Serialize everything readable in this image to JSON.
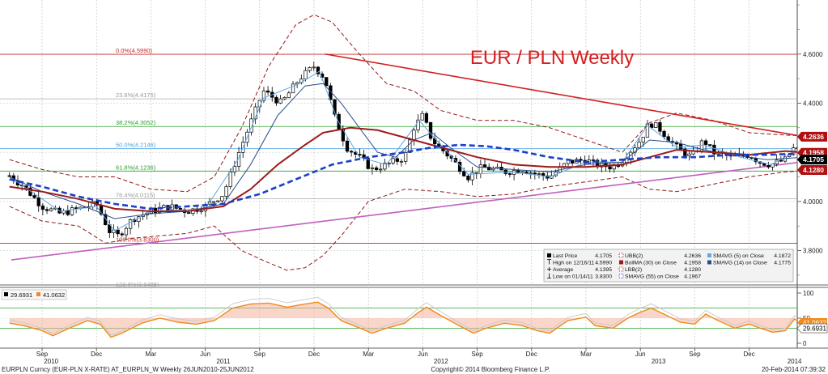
{
  "title": "EUR / PLN Weekly",
  "footer": {
    "left": "EURPLN Curncy (EUR-PLN X-RATE) AT_EURPLN_W  Weekly 26JUN2010-25JUN2012",
    "center": "Copyright© 2014 Bloomberg Finance L.P.",
    "right": "20-Feb-2014 07:39:32"
  },
  "x_axis": {
    "months": [
      {
        "label": "Sep",
        "t": 0
      },
      {
        "label": "Dec",
        "t": 3
      },
      {
        "label": "Mar",
        "t": 6
      },
      {
        "label": "Jun",
        "t": 9
      },
      {
        "label": "Sep",
        "t": 12
      },
      {
        "label": "Dec",
        "t": 15
      },
      {
        "label": "Mar",
        "t": 18
      },
      {
        "label": "Jun",
        "t": 21
      },
      {
        "label": "Sep",
        "t": 24
      },
      {
        "label": "Dec",
        "t": 27
      },
      {
        "label": "Mar",
        "t": 30
      },
      {
        "label": "Jun",
        "t": 33
      },
      {
        "label": "Sep",
        "t": 36
      },
      {
        "label": "Dec",
        "t": 39
      }
    ],
    "years": [
      {
        "label": "2010",
        "t": 0.5
      },
      {
        "label": "2011",
        "t": 10
      },
      {
        "label": "2012",
        "t": 22
      },
      {
        "label": "2013",
        "t": 34
      },
      {
        "label": "2014",
        "t": 41.5
      }
    ]
  },
  "price_axis": {
    "ticks": [
      "4.6000",
      "4.4000",
      "4.2000",
      "4.0000",
      "3.8000"
    ],
    "tick_values": [
      4.6,
      4.4,
      4.2,
      4.0,
      3.8
    ],
    "range": [
      3.66,
      4.82
    ],
    "badges": [
      {
        "label": "4.2636",
        "value": 4.2636,
        "color": "#b01010"
      },
      {
        "label": "4.1958",
        "value": 4.198,
        "color": "#b01010"
      },
      {
        "label": "4.1705",
        "value": 4.1705,
        "color": "#000000"
      },
      {
        "label": "4.1280",
        "value": 4.128,
        "color": "#b01010"
      }
    ]
  },
  "fib_levels": [
    {
      "label": "0.0%(4.5990)",
      "value": 4.599,
      "color": "#c22a2a"
    },
    {
      "label": "23.6%(4.4175)",
      "value": 4.4175,
      "color": "#aaaaaa"
    },
    {
      "label": "38.2%(4.3052)",
      "value": 4.3052,
      "color": "#2ca02c"
    },
    {
      "label": "50.0%(4.2146)",
      "value": 4.2146,
      "color": "#4fa3e0"
    },
    {
      "label": "61.8%(4.1236)",
      "value": 4.1236,
      "color": "#2ca02c"
    },
    {
      "label": "76.4%(4.0115)",
      "value": 4.0115,
      "color": "#aaaaaa"
    },
    {
      "label": "100.0%(3.8300)",
      "value": 3.83,
      "color": "#c22a2a"
    },
    {
      "label": "123.6%(3.6485)",
      "value": 3.6485,
      "color": "#aaaaaa"
    }
  ],
  "trendlines": [
    {
      "from": {
        "t": 15.6,
        "v": 4.6
      },
      "to": {
        "t": 43.5,
        "v": 4.245
      },
      "color": "#d02020"
    },
    {
      "from": {
        "t": -1.7,
        "v": 3.762
      },
      "to": {
        "t": 43.5,
        "v": 4.175
      },
      "color": "#c060c0"
    }
  ],
  "legend": {
    "col1": [
      {
        "icon": "filled-square",
        "label": "Last Price",
        "value": "4.1705"
      },
      {
        "icon": "high-tick",
        "label": "High on 12/16/11",
        "value": "4.5990"
      },
      {
        "icon": "average-plus",
        "label": "Average",
        "value": "4.1395"
      },
      {
        "icon": "low-tick",
        "label": "Low on 01/14/11",
        "value": "3.8300"
      }
    ],
    "col2": [
      {
        "icon": "dashed-maroon",
        "label": "UBB(2)",
        "value": "4.2636"
      },
      {
        "icon": "solid-maroon",
        "label": "BollMA (30) on Close",
        "value": "4.1958"
      },
      {
        "icon": "dashed-maroon",
        "label": "LBB(2)",
        "value": "4.1280"
      },
      {
        "icon": "dashed-blue",
        "label": "SMAVG (55) on Close",
        "value": "4.1967"
      }
    ],
    "col3": [
      {
        "icon": "light-blue-square",
        "label": "SMAVG (5) on Close",
        "value": "4.1872"
      },
      {
        "icon": "navy-square",
        "label": "SMAVG (14) on Close",
        "value": "4.1775"
      }
    ]
  },
  "indicator": {
    "legend": [
      {
        "label": "29.6931",
        "color": "#000000"
      },
      {
        "label": "41.0632",
        "color": "#f08a1c"
      }
    ],
    "ticks": [
      "100",
      "50",
      "0"
    ],
    "tick_values": [
      100,
      50,
      0
    ],
    "lines": [
      70,
      30
    ],
    "badges": [
      {
        "label": "41.0632",
        "value": 41.06,
        "color": "#f08a1c"
      },
      {
        "label": "29.6931",
        "value": 29.69,
        "color": "#000000"
      }
    ]
  },
  "chart_data": {
    "type": "candlestick",
    "title": "EUR / PLN Weekly",
    "x_unit": "month index starting Sep 2010",
    "ylim": [
      3.66,
      4.82
    ],
    "close_series": [
      {
        "t": -1.8,
        "close": 4.105
      },
      {
        "t": -1.0,
        "close": 4.06
      },
      {
        "t": 0.0,
        "close": 3.98
      },
      {
        "t": 1.0,
        "close": 3.95
      },
      {
        "t": 2.0,
        "close": 3.97
      },
      {
        "t": 3.0,
        "close": 3.99
      },
      {
        "t": 3.7,
        "close": 3.88
      },
      {
        "t": 4.2,
        "close": 3.86
      },
      {
        "t": 5.0,
        "close": 3.93
      },
      {
        "t": 6.0,
        "close": 3.96
      },
      {
        "t": 7.0,
        "close": 3.98
      },
      {
        "t": 8.0,
        "close": 3.96
      },
      {
        "t": 9.0,
        "close": 3.98
      },
      {
        "t": 10.0,
        "close": 4.03
      },
      {
        "t": 10.8,
        "close": 4.19
      },
      {
        "t": 11.5,
        "close": 4.32
      },
      {
        "t": 12.2,
        "close": 4.45
      },
      {
        "t": 13.2,
        "close": 4.4
      },
      {
        "t": 14.2,
        "close": 4.5
      },
      {
        "t": 15.0,
        "close": 4.55
      },
      {
        "t": 15.6,
        "close": 4.5
      },
      {
        "t": 16.1,
        "close": 4.35
      },
      {
        "t": 16.8,
        "close": 4.22
      },
      {
        "t": 17.5,
        "close": 4.18
      },
      {
        "t": 18.2,
        "close": 4.13
      },
      {
        "t": 19.0,
        "close": 4.15
      },
      {
        "t": 20.0,
        "close": 4.18
      },
      {
        "t": 20.5,
        "close": 4.3
      },
      {
        "t": 21.0,
        "close": 4.35
      },
      {
        "t": 21.5,
        "close": 4.25
      },
      {
        "t": 22.5,
        "close": 4.18
      },
      {
        "t": 23.5,
        "close": 4.1
      },
      {
        "t": 24.3,
        "close": 4.14
      },
      {
        "t": 25.5,
        "close": 4.12
      },
      {
        "t": 26.5,
        "close": 4.13
      },
      {
        "t": 27.3,
        "close": 4.11
      },
      {
        "t": 28.0,
        "close": 4.1
      },
      {
        "t": 29.0,
        "close": 4.16
      },
      {
        "t": 30.0,
        "close": 4.17
      },
      {
        "t": 30.5,
        "close": 4.15
      },
      {
        "t": 31.5,
        "close": 4.14
      },
      {
        "t": 32.0,
        "close": 4.17
      },
      {
        "t": 33.0,
        "close": 4.25
      },
      {
        "t": 33.5,
        "close": 4.32
      },
      {
        "t": 34.0,
        "close": 4.3
      },
      {
        "t": 35.0,
        "close": 4.22
      },
      {
        "t": 35.8,
        "close": 4.18
      },
      {
        "t": 36.5,
        "close": 4.25
      },
      {
        "t": 37.0,
        "close": 4.2
      },
      {
        "t": 38.0,
        "close": 4.18
      },
      {
        "t": 39.0,
        "close": 4.19
      },
      {
        "t": 39.6,
        "close": 4.16
      },
      {
        "t": 40.2,
        "close": 4.15
      },
      {
        "t": 41.0,
        "close": 4.17
      },
      {
        "t": 41.5,
        "close": 4.22
      },
      {
        "t": 42.0,
        "close": 4.19
      },
      {
        "t": 42.8,
        "close": 4.1705
      }
    ],
    "bollinger_ma_30": [
      [
        -1.8,
        4.06
      ],
      [
        0.0,
        4.04
      ],
      [
        2.0,
        4.01
      ],
      [
        4.0,
        3.97
      ],
      [
        6.0,
        3.96
      ],
      [
        8.0,
        3.96
      ],
      [
        10.0,
        3.98
      ],
      [
        11.5,
        4.05
      ],
      [
        13.0,
        4.15
      ],
      [
        14.5,
        4.23
      ],
      [
        15.5,
        4.28
      ],
      [
        17.0,
        4.3
      ],
      [
        18.5,
        4.29
      ],
      [
        20.0,
        4.26
      ],
      [
        22.0,
        4.22
      ],
      [
        24.0,
        4.18
      ],
      [
        26.0,
        4.15
      ],
      [
        28.0,
        4.14
      ],
      [
        30.0,
        4.14
      ],
      [
        32.0,
        4.15
      ],
      [
        33.5,
        4.18
      ],
      [
        35.0,
        4.21
      ],
      [
        37.0,
        4.2
      ],
      [
        39.0,
        4.19
      ],
      [
        41.0,
        4.205
      ],
      [
        42.8,
        4.196
      ]
    ],
    "bollinger_upper": [
      [
        -1.8,
        4.17
      ],
      [
        0.0,
        4.13
      ],
      [
        2.0,
        4.1
      ],
      [
        4.0,
        4.1
      ],
      [
        6.0,
        4.05
      ],
      [
        8.0,
        4.04
      ],
      [
        9.5,
        4.1
      ],
      [
        11.0,
        4.3
      ],
      [
        12.5,
        4.55
      ],
      [
        14.0,
        4.72
      ],
      [
        15.0,
        4.76
      ],
      [
        16.0,
        4.73
      ],
      [
        17.5,
        4.6
      ],
      [
        19.0,
        4.48
      ],
      [
        20.5,
        4.45
      ],
      [
        22.0,
        4.37
      ],
      [
        24.0,
        4.33
      ],
      [
        26.0,
        4.33
      ],
      [
        28.0,
        4.3
      ],
      [
        30.0,
        4.25
      ],
      [
        32.0,
        4.2
      ],
      [
        33.5,
        4.32
      ],
      [
        35.0,
        4.36
      ],
      [
        37.0,
        4.33
      ],
      [
        39.0,
        4.28
      ],
      [
        41.0,
        4.27
      ],
      [
        42.8,
        4.264
      ]
    ],
    "bollinger_lower": [
      [
        -1.8,
        3.98
      ],
      [
        0.0,
        3.92
      ],
      [
        2.0,
        3.9
      ],
      [
        3.5,
        3.83
      ],
      [
        5.0,
        3.85
      ],
      [
        6.5,
        3.86
      ],
      [
        8.0,
        3.87
      ],
      [
        9.5,
        3.9
      ],
      [
        11.0,
        3.8
      ],
      [
        12.5,
        3.75
      ],
      [
        13.5,
        3.72
      ],
      [
        14.5,
        3.73
      ],
      [
        15.5,
        3.78
      ],
      [
        16.5,
        3.86
      ],
      [
        18.0,
        4.0
      ],
      [
        20.0,
        4.05
      ],
      [
        22.0,
        4.04
      ],
      [
        24.0,
        4.02
      ],
      [
        26.0,
        4.03
      ],
      [
        28.0,
        4.06
      ],
      [
        30.0,
        4.08
      ],
      [
        32.0,
        4.1
      ],
      [
        33.5,
        4.05
      ],
      [
        35.0,
        4.04
      ],
      [
        37.0,
        4.07
      ],
      [
        39.0,
        4.1
      ],
      [
        41.0,
        4.12
      ],
      [
        42.8,
        4.128
      ]
    ],
    "smavg_55": [
      [
        -1.8,
        4.09
      ],
      [
        0.0,
        4.06
      ],
      [
        2.0,
        4.02
      ],
      [
        4.0,
        3.99
      ],
      [
        6.0,
        3.97
      ],
      [
        8.0,
        3.98
      ],
      [
        10.0,
        3.99
      ],
      [
        12.0,
        4.03
      ],
      [
        14.0,
        4.09
      ],
      [
        16.0,
        4.15
      ],
      [
        18.0,
        4.18
      ],
      [
        20.0,
        4.2
      ],
      [
        21.5,
        4.22
      ],
      [
        23.0,
        4.23
      ],
      [
        24.5,
        4.225
      ],
      [
        26.0,
        4.21
      ],
      [
        28.0,
        4.18
      ],
      [
        30.0,
        4.16
      ],
      [
        32.0,
        4.17
      ],
      [
        34.0,
        4.18
      ],
      [
        36.0,
        4.18
      ],
      [
        38.0,
        4.19
      ],
      [
        40.0,
        4.19
      ],
      [
        42.8,
        4.197
      ]
    ],
    "smavg_14": [
      [
        -1.8,
        4.1
      ],
      [
        0.0,
        4.04
      ],
      [
        2.0,
        3.99
      ],
      [
        4.0,
        3.93
      ],
      [
        6.0,
        3.95
      ],
      [
        8.0,
        3.96
      ],
      [
        10.0,
        3.99
      ],
      [
        11.5,
        4.15
      ],
      [
        13.0,
        4.35
      ],
      [
        14.5,
        4.47
      ],
      [
        15.5,
        4.48
      ],
      [
        16.5,
        4.4
      ],
      [
        17.5,
        4.3
      ],
      [
        18.5,
        4.2
      ],
      [
        19.5,
        4.18
      ],
      [
        20.5,
        4.25
      ],
      [
        21.5,
        4.28
      ],
      [
        22.5,
        4.22
      ],
      [
        24.0,
        4.14
      ],
      [
        26.0,
        4.13
      ],
      [
        28.0,
        4.12
      ],
      [
        30.0,
        4.15
      ],
      [
        32.0,
        4.16
      ],
      [
        33.5,
        4.25
      ],
      [
        35.0,
        4.24
      ],
      [
        36.5,
        4.21
      ],
      [
        38.0,
        4.19
      ],
      [
        40.0,
        4.17
      ],
      [
        42.0,
        4.18
      ],
      [
        42.8,
        4.1775
      ]
    ],
    "smavg_5": [
      [
        -1.8,
        4.1
      ],
      [
        1.0,
        3.96
      ],
      [
        3.0,
        3.98
      ],
      [
        4.0,
        3.88
      ],
      [
        6.0,
        3.96
      ],
      [
        9.0,
        3.97
      ],
      [
        10.8,
        4.17
      ],
      [
        12.2,
        4.42
      ],
      [
        14.2,
        4.48
      ],
      [
        15.3,
        4.53
      ],
      [
        16.3,
        4.33
      ],
      [
        17.5,
        4.18
      ],
      [
        19.0,
        4.15
      ],
      [
        20.8,
        4.33
      ],
      [
        21.5,
        4.27
      ],
      [
        23.5,
        4.11
      ],
      [
        26.0,
        4.12
      ],
      [
        28.0,
        4.1
      ],
      [
        30.0,
        4.16
      ],
      [
        32.0,
        4.16
      ],
      [
        33.4,
        4.31
      ],
      [
        35.0,
        4.22
      ],
      [
        36.5,
        4.23
      ],
      [
        38.5,
        4.18
      ],
      [
        40.2,
        4.15
      ],
      [
        41.5,
        4.2
      ],
      [
        42.8,
        4.187
      ]
    ],
    "rsi": [
      [
        -1.8,
        40
      ],
      [
        -1.0,
        35
      ],
      [
        0.0,
        25
      ],
      [
        0.6,
        15
      ],
      [
        1.5,
        30
      ],
      [
        2.5,
        45
      ],
      [
        3.2,
        38
      ],
      [
        3.8,
        12
      ],
      [
        4.4,
        20
      ],
      [
        5.5,
        40
      ],
      [
        6.5,
        50
      ],
      [
        7.5,
        42
      ],
      [
        8.5,
        38
      ],
      [
        9.5,
        45
      ],
      [
        10.5,
        70
      ],
      [
        11.5,
        78
      ],
      [
        12.5,
        80
      ],
      [
        13.5,
        72
      ],
      [
        14.5,
        78
      ],
      [
        15.2,
        82
      ],
      [
        15.8,
        70
      ],
      [
        16.5,
        45
      ],
      [
        17.2,
        35
      ],
      [
        18.2,
        20
      ],
      [
        19.0,
        30
      ],
      [
        20.0,
        40
      ],
      [
        20.7,
        60
      ],
      [
        21.2,
        72
      ],
      [
        22.0,
        55
      ],
      [
        23.0,
        35
      ],
      [
        23.8,
        20
      ],
      [
        24.5,
        30
      ],
      [
        25.5,
        40
      ],
      [
        26.5,
        35
      ],
      [
        27.3,
        25
      ],
      [
        28.0,
        20
      ],
      [
        29.0,
        45
      ],
      [
        30.0,
        52
      ],
      [
        30.5,
        35
      ],
      [
        31.5,
        30
      ],
      [
        32.3,
        50
      ],
      [
        33.0,
        62
      ],
      [
        33.6,
        70
      ],
      [
        34.3,
        58
      ],
      [
        35.2,
        42
      ],
      [
        36.0,
        38
      ],
      [
        36.6,
        58
      ],
      [
        37.3,
        45
      ],
      [
        38.2,
        30
      ],
      [
        39.0,
        38
      ],
      [
        39.6,
        30
      ],
      [
        40.3,
        22
      ],
      [
        41.0,
        25
      ],
      [
        41.5,
        48
      ],
      [
        42.0,
        38
      ],
      [
        42.8,
        41.06
      ]
    ]
  }
}
